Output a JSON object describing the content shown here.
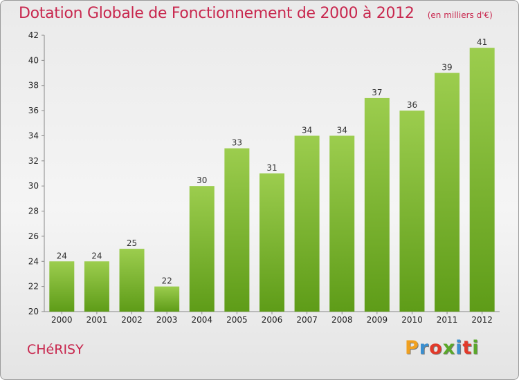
{
  "header": {
    "title": "Dotation Globale de Fonctionnement de 2000 à 2012",
    "subtitle": "(en milliers d'€)"
  },
  "footer": {
    "commune": "CHéRISY",
    "logo_text": "Proxiti",
    "logo_colors": [
      "#f0a020",
      "#3a8fd0",
      "#e23a2a",
      "#5aa82a",
      "#3a8fd0",
      "#e23a2a",
      "#5aa82a"
    ]
  },
  "chart_data": {
    "type": "bar",
    "title": "Dotation Globale de Fonctionnement de 2000 à 2012",
    "subtitle": "(en milliers d'€)",
    "categories": [
      "2000",
      "2001",
      "2002",
      "2003",
      "2004",
      "2005",
      "2006",
      "2007",
      "2008",
      "2009",
      "2010",
      "2011",
      "2012"
    ],
    "values": [
      24,
      24,
      25,
      22,
      30,
      33,
      31,
      34,
      34,
      37,
      36,
      39,
      41
    ],
    "ylim": [
      20,
      42
    ],
    "yticks": [
      20,
      22,
      24,
      26,
      28,
      30,
      32,
      34,
      36,
      38,
      40,
      42
    ],
    "grid": false,
    "colors": {
      "bar_light": "#9ccd4e",
      "bar_dark": "#5e9c18",
      "axis": "#888888"
    }
  }
}
